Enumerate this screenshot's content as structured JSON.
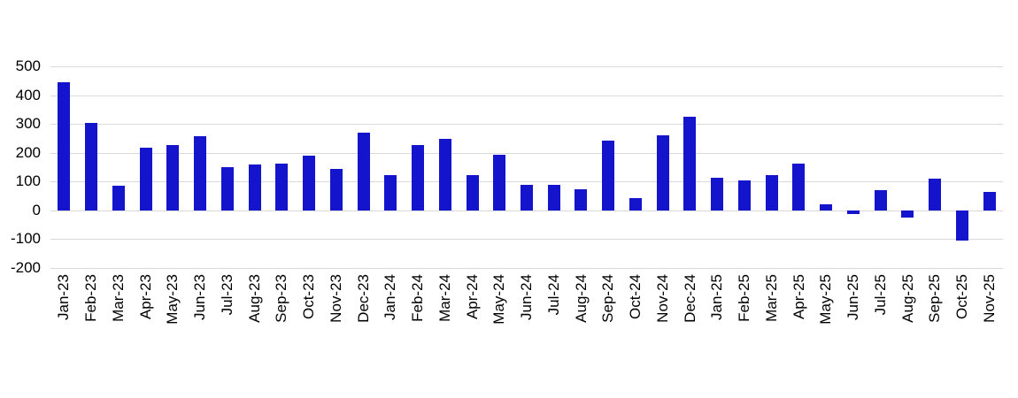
{
  "chart_data": {
    "type": "bar",
    "title": "",
    "xlabel": "",
    "ylabel": "",
    "categories": [
      "Jan-23",
      "Feb-23",
      "Mar-23",
      "Apr-23",
      "May-23",
      "Jun-23",
      "Jul-23",
      "Aug-23",
      "Sep-23",
      "Oct-23",
      "Nov-23",
      "Dec-23",
      "Jan-24",
      "Feb-24",
      "Mar-24",
      "Apr-24",
      "May-24",
      "Jun-24",
      "Jul-24",
      "Aug-24",
      "Sep-24",
      "Oct-24",
      "Nov-24",
      "Dec-24",
      "Jan-25",
      "Feb-25",
      "Mar-25",
      "Apr-25",
      "May-25",
      "Jun-25",
      "Jul-25",
      "Aug-25",
      "Sep-25",
      "Oct-25",
      "Nov-25"
    ],
    "values": [
      445,
      305,
      86,
      217,
      227,
      258,
      150,
      158,
      162,
      190,
      143,
      270,
      121,
      227,
      248,
      121,
      193,
      88,
      90,
      73,
      243,
      44,
      262,
      324,
      113,
      105,
      123,
      161,
      21,
      -14,
      71,
      -26,
      110,
      -104,
      65
    ],
    "ylim": [
      -200,
      500
    ],
    "yticks": [
      500,
      400,
      300,
      200,
      100,
      0,
      -100,
      -200
    ],
    "grid": true,
    "legend": false,
    "bar_color": "#1414CD",
    "gridline_color": "#D9D9D9",
    "background_color": "#FFFFFF",
    "text_color": "#000000"
  }
}
